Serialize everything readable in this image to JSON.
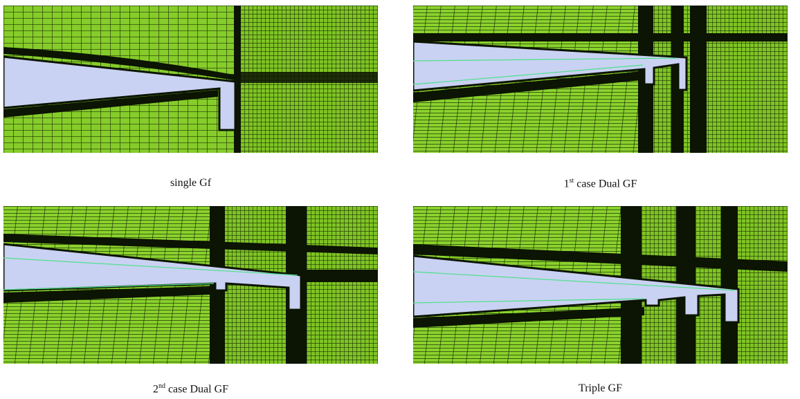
{
  "panels": [
    {
      "caption": "single Gf"
    },
    {
      "caption_number": "1",
      "caption_suffix": "st",
      "caption_text": "case Dual GF"
    },
    {
      "caption_number": "2",
      "caption_suffix": "nd",
      "caption_text": "case Dual GF"
    },
    {
      "caption": "Triple GF"
    }
  ]
}
